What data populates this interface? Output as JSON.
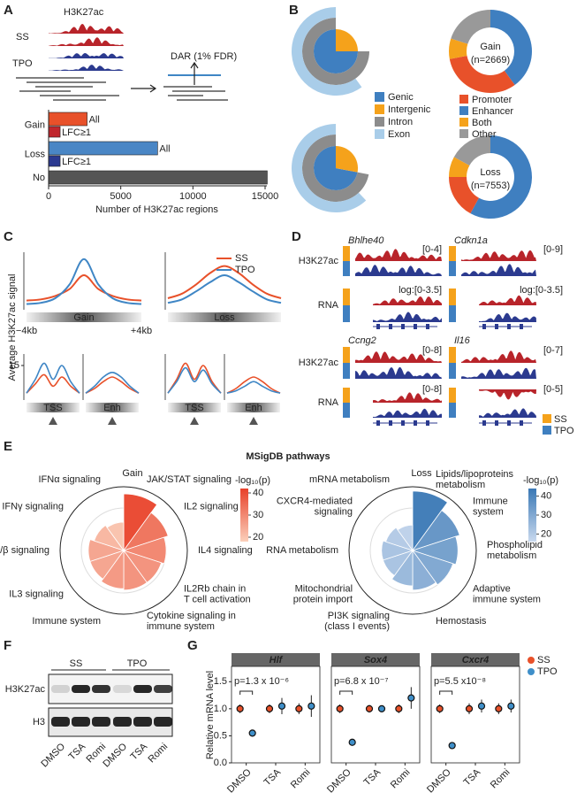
{
  "panel_labels": [
    "A",
    "B",
    "C",
    "D",
    "E",
    "F",
    "G"
  ],
  "panel_a": {
    "track_title": "H3K27ac",
    "track_labels": [
      "SS",
      "TPO"
    ],
    "dar_label": "DAR (1% FDR)"
  },
  "panel_d": {
    "genes": [
      "Bhlhe40",
      "Cdkn1a",
      "Ccng2",
      "Il16"
    ],
    "track_labels": [
      "H3K27ac",
      "RNA",
      "H3K27ac",
      "RNA"
    ],
    "ranges": [
      "[0-4]",
      "[0-9]",
      "log:[0-3.5]",
      "log:[0-3.5]",
      "[0-8]",
      "[0-7]",
      "[0-8]",
      "[0-5]"
    ],
    "legend": [
      {
        "name": "SS",
        "color": "#f5a21b"
      },
      {
        "name": "TPO",
        "color": "#3f7fc0"
      }
    ]
  },
  "panel_e": {
    "title": "MSigDB pathways"
  },
  "panel_f": {
    "groups": [
      "SS",
      "TPO"
    ],
    "rows": [
      "H3K27ac",
      "H3"
    ],
    "lanes": [
      "DMSO",
      "TSA",
      "Romi",
      "DMSO",
      "TSA",
      "Romi"
    ]
  },
  "chart_data": [
    {
      "type": "hbar",
      "xlabel": "Number of H3K27ac regions",
      "xlim": [
        0,
        15000
      ],
      "xticks": [
        0,
        5000,
        10000,
        15000
      ],
      "groups": [
        {
          "name": "Gain",
          "bars": [
            {
              "label": "All",
              "value": 2669,
              "color": "#e8512a"
            },
            {
              "label": "LFC≥1",
              "value": 800,
              "color": "#c0262d"
            }
          ]
        },
        {
          "name": "Loss",
          "bars": [
            {
              "label": "All",
              "value": 7553,
              "color": "#4a86c5"
            },
            {
              "label": "LFC≥1",
              "value": 800,
              "color": "#2b3990"
            }
          ]
        },
        {
          "name": "No",
          "bars": [
            {
              "value": 15150,
              "color": "#555555"
            }
          ]
        }
      ]
    },
    {
      "type": "sunburst",
      "labels": [
        "Genic",
        "Intergenic",
        "Intron",
        "Exon"
      ],
      "colors": [
        "#3f7fc0",
        "#f5a21b",
        "#8c8c8c",
        "#a9cde9"
      ],
      "values": [
        75,
        25,
        75,
        60
      ]
    },
    {
      "type": "sunburst",
      "values": [
        72,
        28,
        72,
        62
      ]
    },
    {
      "type": "pie",
      "title": "Gain",
      "subtitle": "(n=2669)",
      "labels": [
        "Promoter",
        "Enhancer",
        "Both",
        "Other"
      ],
      "colors": [
        "#e8512a",
        "#3f7fc0",
        "#f5a21b",
        "#999999"
      ],
      "values": [
        32,
        40,
        8,
        20
      ]
    },
    {
      "type": "pie",
      "title": "Loss",
      "subtitle": "(n=7553)",
      "values": [
        17,
        58,
        8,
        17
      ]
    },
    {
      "type": "line",
      "title": "Gain",
      "ylabel": "Average H3K27ac signal",
      "x": [
        -4,
        -3,
        -2,
        -1,
        0,
        1,
        2,
        3,
        4
      ],
      "xlim": [
        -4,
        4
      ],
      "ylim": [
        0,
        25
      ],
      "xticks": [
        {
          "value": -4,
          "label": "−4kb"
        },
        {
          "value": 4,
          "label": "+4kb"
        }
      ],
      "series": [
        {
          "name": "SS",
          "color": "#e8512a",
          "values": [
            4,
            4.5,
            6,
            9,
            15,
            9,
            6,
            4.5,
            4
          ]
        },
        {
          "name": "TPO",
          "color": "#3f86c5",
          "values": [
            2.5,
            3,
            5,
            11,
            22,
            11,
            5,
            3,
            2.5
          ]
        }
      ]
    },
    {
      "type": "line",
      "title": "Loss",
      "x": [
        -4,
        -3,
        -2,
        -1,
        0,
        1,
        2,
        3,
        4
      ],
      "xlim": [
        -4,
        4
      ],
      "ylim": [
        0,
        25
      ],
      "series": [
        {
          "color": "#e8512a",
          "values": [
            5,
            7,
            11,
            16,
            19,
            16,
            11,
            7,
            5
          ]
        },
        {
          "color": "#3f86c5",
          "values": [
            3,
            4.5,
            8,
            12,
            15,
            12,
            8,
            4.5,
            3
          ]
        }
      ]
    },
    {
      "type": "line",
      "title": "TSS",
      "x": [
        -3,
        -2,
        -1,
        0,
        1,
        2,
        3
      ],
      "xlim": [
        -3,
        3
      ],
      "ylim": [
        0,
        20
      ],
      "yticks": [
        15
      ],
      "series": [
        {
          "color": "#e8512a",
          "values": [
            3,
            7,
            11,
            6,
            10,
            6,
            3
          ]
        },
        {
          "color": "#3f86c5",
          "values": [
            3,
            9,
            16,
            9,
            15,
            8,
            3
          ]
        }
      ]
    },
    {
      "type": "line",
      "title": "Enh",
      "x": [
        -3,
        -2,
        -1,
        0,
        1,
        2,
        3
      ],
      "xlim": [
        -3,
        3
      ],
      "ylim": [
        0,
        20
      ],
      "series": [
        {
          "color": "#e8512a",
          "values": [
            3,
            5,
            8,
            10,
            8,
            5,
            3
          ]
        },
        {
          "color": "#3f86c5",
          "values": [
            3,
            6,
            10,
            12,
            10,
            6,
            3
          ]
        }
      ]
    },
    {
      "type": "line",
      "title": "TSS",
      "x": [
        -3,
        -2,
        -1,
        0,
        1,
        2,
        3
      ],
      "xlim": [
        -3,
        3
      ],
      "ylim": [
        0,
        20
      ],
      "series": [
        {
          "color": "#e8512a",
          "values": [
            3,
            9,
            16,
            9,
            15,
            8,
            3
          ]
        },
        {
          "color": "#3f86c5",
          "values": [
            3,
            8,
            14,
            8,
            13,
            7,
            3
          ]
        }
      ]
    },
    {
      "type": "line",
      "title": "Enh",
      "x": [
        -3,
        -2,
        -1,
        0,
        1,
        2,
        3
      ],
      "xlim": [
        -3,
        3
      ],
      "ylim": [
        0,
        20
      ],
      "series": [
        {
          "color": "#e8512a",
          "values": [
            3,
            5,
            8,
            10,
            8,
            5,
            3
          ]
        },
        {
          "color": "#3f86c5",
          "values": [
            3,
            4,
            6,
            8,
            6,
            4,
            3
          ]
        }
      ]
    },
    {
      "type": "polar",
      "title": "Gain",
      "rlim": [
        0,
        45
      ],
      "categories": [
        [
          "JAK/STAT signaling"
        ],
        [
          "IL2 signaling"
        ],
        [
          "IL4 signaling"
        ],
        [
          "IL2Rb chain in",
          "T cell activation"
        ],
        [
          "Cytokine signaling in",
          "immune system"
        ],
        [
          "Immune system"
        ],
        [
          "IL3 signaling"
        ],
        [
          "IFNα/β signaling"
        ],
        [
          "IFNγ signaling"
        ],
        [
          "IFNα signaling"
        ]
      ],
      "values": [
        40,
        33,
        30,
        28,
        28,
        27,
        25,
        25,
        22,
        20
      ],
      "colorbar": {
        "label": "-log₁₀(p)",
        "lim": [
          18,
          42
        ],
        "ticks": [
          20,
          30,
          40
        ],
        "colors": [
          "#fbd0bb",
          "#e8412a"
        ]
      }
    },
    {
      "type": "polar",
      "title": "Loss",
      "rlim": [
        0,
        45
      ],
      "categories": [
        [
          "Lipids/lipoproteins",
          "metabolism"
        ],
        [
          "Immune",
          "system"
        ],
        [
          "Phospholipid",
          "metabolism"
        ],
        [
          "Adaptive",
          "immune system"
        ],
        [
          "Hemostasis"
        ],
        [
          "PI3K signaling",
          "(class I events)"
        ],
        [
          "Mitochondrial",
          "protein import"
        ],
        [
          "RNA metabolism"
        ],
        [
          "CXCR4-mediated",
          "signaling"
        ],
        [
          "mRNA metabolism"
        ]
      ],
      "values": [
        42,
        35,
        32,
        30,
        28,
        25,
        22,
        22,
        20,
        18
      ],
      "colorbar": {
        "label": "-log₁₀(p)",
        "lim": [
          16,
          44
        ],
        "ticks": [
          20,
          30,
          40
        ],
        "colors": [
          "#c9d9ee",
          "#3a78b5"
        ]
      }
    },
    {
      "type": "dot",
      "title": "Hlf",
      "ylabel": "Relative mRNA level",
      "annotation": "p=1.3 x 10⁻⁶",
      "categories": [
        "DMSO",
        "TSA",
        "Romi"
      ],
      "ylim": [
        0,
        1.75
      ],
      "yticks": [
        {
          "value": 0,
          "label": "0.0"
        },
        {
          "value": 0.5,
          "label": "0.5"
        },
        {
          "value": 1,
          "label": "1.0"
        },
        {
          "value": 1.5,
          "label": "1.5"
        }
      ],
      "series": [
        {
          "name": "SS",
          "color": "#e8512a",
          "values": [
            1.0,
            1.0,
            1.0
          ],
          "errors": [
            0.08,
            0.08,
            0.1
          ]
        },
        {
          "name": "TPO",
          "color": "#3f8fc9",
          "values": [
            0.55,
            1.05,
            1.05
          ],
          "errors": [
            0.03,
            0.15,
            0.2
          ]
        }
      ]
    },
    {
      "type": "dot",
      "title": "Sox4",
      "annotation": "p=6.8 x 10⁻⁷",
      "categories": [
        "DMSO",
        "TSA",
        "Romi"
      ],
      "ylim": [
        0,
        1.75
      ],
      "series": [
        {
          "color": "#e8512a",
          "values": [
            1.0,
            1.0,
            1.0
          ],
          "errors": [
            0.08,
            0.07,
            0.08
          ]
        },
        {
          "color": "#3f8fc9",
          "values": [
            0.38,
            1.0,
            1.2
          ],
          "errors": [
            0.02,
            0.06,
            0.2
          ]
        }
      ]
    },
    {
      "type": "dot",
      "title": "Cxcr4",
      "annotation": "p=5.5 x10⁻⁸",
      "categories": [
        "DMSO",
        "TSA",
        "Romi"
      ],
      "ylim": [
        0,
        1.75
      ],
      "series": [
        {
          "color": "#e8512a",
          "values": [
            1.0,
            1.0,
            1.0
          ],
          "errors": [
            0.08,
            0.1,
            0.1
          ]
        },
        {
          "color": "#3f8fc9",
          "values": [
            0.32,
            1.05,
            1.05
          ],
          "errors": [
            0.02,
            0.12,
            0.12
          ]
        }
      ]
    }
  ]
}
